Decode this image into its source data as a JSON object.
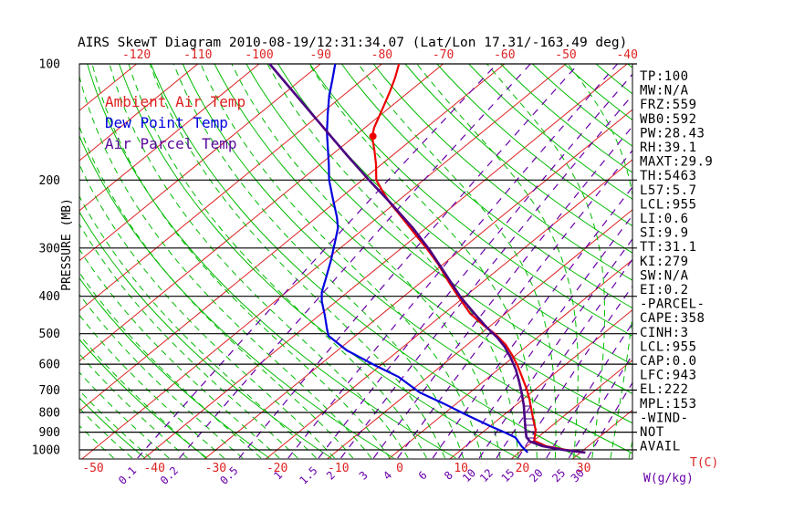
{
  "title": "AIRS SkewT Diagram 2010-08-19/12:31:34.07 (Lat/Lon 17.31/-163.49 deg)",
  "axes": {
    "pressure_label": "PRESSURE (MB)",
    "pressure_ticks": [
      100,
      200,
      300,
      400,
      500,
      600,
      700,
      800,
      900,
      1000
    ],
    "temp_unit_label": "T(C)",
    "mixing_unit_label": "W(g/kg)",
    "top_temp_ticks": [
      -120,
      -110,
      -100,
      -90,
      -80,
      -70,
      -60,
      -50,
      -40
    ],
    "bottom_temp_ticks": [
      -50,
      -40,
      -30,
      -20,
      -10,
      0,
      10,
      20,
      30
    ],
    "mixing_ratio_ticks": [
      "0.1",
      "0.2",
      "0.5",
      "1",
      "1.5",
      "2",
      "3",
      "4",
      "6",
      "8",
      "10",
      "12",
      "15",
      "20",
      "25",
      "30"
    ]
  },
  "legend": [
    {
      "label": "Ambient Air Temp",
      "color": "#dd2222"
    },
    {
      "label": "Dew Point Temp",
      "color": "#0000dd"
    },
    {
      "label": "Air Parcel Temp",
      "color": "#5a0a9a"
    }
  ],
  "stats_panel": [
    "TP:100",
    "MW:N/A",
    "FRZ:559",
    "WB0:592",
    "PW:28.43",
    "RH:39.1",
    "MAXT:29.9",
    "TH:5463",
    "L57:5.7",
    "LCL:955",
    "LI:0.6",
    "SI:9.9",
    "TT:31.1",
    "KI:279",
    "SW:N/A",
    "EI:0.2",
    "-PARCEL-",
    "CAPE:358",
    "CINH:3",
    "LCL:955",
    "CAP:0.0",
    "LFC:943",
    "EL:222",
    "MPL:153",
    "-WIND-",
    "NOT",
    "AVAIL"
  ],
  "colors": {
    "isotherm": "#dd2222",
    "adiabat_green": "#00bb00",
    "mixing_purple": "#6a00aa",
    "ambient_curve": "#ee0000",
    "dewpoint_curve": "#0000dd",
    "parcel_curve": "#4b0082",
    "axis_black": "#000000",
    "background": "#ffffff"
  },
  "chart_data": {
    "type": "line",
    "subtype": "skewt-log-p-sounding",
    "title": "AIRS SkewT Diagram 2010-08-19/12:31:34.07",
    "xlabel": "T(C)",
    "ylabel": "PRESSURE (MB)",
    "pressure_range_mb": [
      100,
      1050
    ],
    "isotherm_range_c": [
      -130,
      40
    ],
    "isotherm_step_c": 10,
    "grid": "skewt",
    "legend_position": "top-left-inside",
    "series": [
      {
        "name": "Ambient Air Temp",
        "color": "#ee0000",
        "units": "[mb, degC]",
        "points": [
          [
            100,
            -77.2
          ],
          [
            108.5,
            -75.1
          ],
          [
            117.7,
            -73.2
          ],
          [
            132.7,
            -70.6
          ],
          [
            146.4,
            -68.5
          ],
          [
            154.6,
            -67.0
          ],
          [
            167.7,
            -63.9
          ],
          [
            182,
            -60.9
          ],
          [
            200,
            -57.7
          ],
          [
            214.4,
            -54.3
          ],
          [
            228.9,
            -51.0
          ],
          [
            253.9,
            -45.2
          ],
          [
            281.6,
            -39.5
          ],
          [
            302,
            -35.6
          ],
          [
            331,
            -30.7
          ],
          [
            369,
            -25.3
          ],
          [
            402.7,
            -20.8
          ],
          [
            443.7,
            -15.7
          ],
          [
            476.4,
            -11.1
          ],
          [
            500,
            -7.7
          ],
          [
            533.4,
            -3.8
          ],
          [
            568,
            -0.6
          ],
          [
            607.8,
            2.6
          ],
          [
            647.6,
            5.4
          ],
          [
            693.3,
            8.4
          ],
          [
            738.4,
            11.0
          ],
          [
            785.9,
            13.4
          ],
          [
            838.5,
            15.9
          ],
          [
            888.6,
            18.2
          ],
          [
            947,
            20.1
          ],
          [
            978,
            23.1
          ],
          [
            1000,
            27.1
          ],
          [
            1016,
            30.8
          ]
        ]
      },
      {
        "name": "Dew Point Temp",
        "color": "#0000dd",
        "units": "[mb, degC]",
        "points": [
          [
            100,
            -87.6
          ],
          [
            110.3,
            -84.8
          ],
          [
            121,
            -82.2
          ],
          [
            134.9,
            -78.8
          ],
          [
            150.4,
            -75.3
          ],
          [
            182,
            -68.6
          ],
          [
            200,
            -65.4
          ],
          [
            223.9,
            -61.0
          ],
          [
            249.6,
            -56.7
          ],
          [
            266,
            -54.4
          ],
          [
            289,
            -52.1
          ],
          [
            322.4,
            -49.1
          ],
          [
            359.3,
            -46.3
          ],
          [
            390.3,
            -44.2
          ],
          [
            411.9,
            -42.4
          ],
          [
            446.8,
            -39.2
          ],
          [
            484.9,
            -36.1
          ],
          [
            506.5,
            -34.4
          ],
          [
            552.5,
            -28.5
          ],
          [
            602.6,
            -21.1
          ],
          [
            647.6,
            -14.7
          ],
          [
            710,
            -8.2
          ],
          [
            758.6,
            -2.1
          ],
          [
            812.8,
            4.0
          ],
          [
            866.7,
            9.9
          ],
          [
            903.7,
            13.9
          ],
          [
            929,
            16.4
          ],
          [
            978,
            19.1
          ],
          [
            1016,
            21.4
          ]
        ]
      },
      {
        "name": "Air Parcel Temp",
        "color": "#4b0082",
        "units": "[mb, degC]",
        "points": [
          [
            100,
            -98.3
          ],
          [
            133.4,
            -82.0
          ],
          [
            172.3,
            -67.5
          ],
          [
            200,
            -58.9
          ],
          [
            228.9,
            -50.9
          ],
          [
            266,
            -42.2
          ],
          [
            302,
            -35.3
          ],
          [
            349.9,
            -27.7
          ],
          [
            402.7,
            -20.5
          ],
          [
            443.7,
            -15.0
          ],
          [
            479.7,
            -10.5
          ],
          [
            512,
            -6.5
          ],
          [
            540.6,
            -3.5
          ],
          [
            577.2,
            -0.3
          ],
          [
            619.4,
            2.9
          ],
          [
            664.8,
            5.8
          ],
          [
            713.7,
            8.6
          ],
          [
            766,
            11.3
          ],
          [
            822,
            13.8
          ],
          [
            882.3,
            16.3
          ],
          [
            926.5,
            18.1
          ],
          [
            951.5,
            19.6
          ],
          [
            978,
            22.5
          ],
          [
            1000,
            26.6
          ],
          [
            1016,
            30.8
          ]
        ]
      }
    ],
    "marker": {
      "name": "max-parcel-level-dot",
      "pressure_mb": 154,
      "temp_c": -67,
      "color": "#ee0000"
    },
    "background_lines": {
      "dry_adiabats_theta_K": {
        "min": 230,
        "max": 450,
        "step": 10
      },
      "moist_adiabats_surface_start_c": {
        "min": -45,
        "max": 39,
        "step": 3
      },
      "mixing_ratio_lines_gkg": [
        0.1,
        0.2,
        0.5,
        1,
        1.5,
        2,
        3,
        4,
        6,
        8,
        10,
        12,
        15,
        20,
        25,
        30
      ]
    },
    "cape_hatch_pressure_bands_mb": [
      [
        224,
        508
      ],
      [
        770,
        944
      ],
      [
        952,
        1012
      ]
    ]
  }
}
